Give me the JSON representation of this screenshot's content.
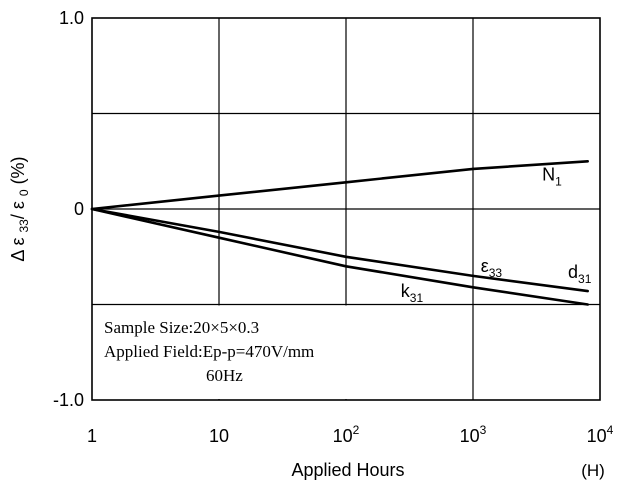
{
  "chart_data": {
    "type": "line",
    "x_scale": "log",
    "xlim": [
      1,
      10000
    ],
    "ylim": [
      -1.0,
      1.0
    ],
    "grid": true,
    "x_ticks": [
      {
        "value": 1,
        "base": "1",
        "exp": ""
      },
      {
        "value": 10,
        "base": "10",
        "exp": ""
      },
      {
        "value": 100,
        "base": "10",
        "exp": "2"
      },
      {
        "value": 1000,
        "base": "10",
        "exp": "3"
      },
      {
        "value": 10000,
        "base": "10",
        "exp": "4"
      }
    ],
    "y_ticks": [
      {
        "value": 1.0,
        "label": "1.0"
      },
      {
        "value": 0,
        "label": "0"
      },
      {
        "value": -1.0,
        "label": "-1.0"
      }
    ],
    "y_gridlines": [
      0.5,
      -0.5
    ],
    "xlabel": "Applied Hours",
    "xunit": "(H)",
    "ylabel": {
      "prefix": "Δ ε ",
      "sub1": "33",
      "mid": "/ ε ",
      "sub2": "0",
      "suffix": " (%)"
    },
    "series": [
      {
        "id": "n1",
        "x": [
          1,
          10,
          100,
          1000,
          8000
        ],
        "y": [
          0,
          0.07,
          0.14,
          0.21,
          0.25
        ]
      },
      {
        "id": "eps33",
        "x": [
          1,
          10,
          100,
          1000,
          8000
        ],
        "y": [
          0,
          -0.12,
          -0.25,
          -0.35,
          -0.43
        ]
      },
      {
        "id": "k31",
        "x": [
          1,
          10,
          100,
          1000,
          8000
        ],
        "y": [
          0,
          -0.15,
          -0.3,
          -0.41,
          -0.5
        ]
      }
    ],
    "labels": [
      {
        "id": "n1-label",
        "base": "N",
        "sub": "1",
        "at": [
          3500,
          0.15
        ]
      },
      {
        "id": "eps33-label",
        "base": "ε",
        "sub": "33",
        "at": [
          1150,
          -0.33
        ]
      },
      {
        "id": "d31-label",
        "base": "d",
        "sub": "31",
        "at": [
          5600,
          -0.36
        ]
      },
      {
        "id": "k31-label",
        "base": "k",
        "sub": "31",
        "at": [
          270,
          -0.46
        ]
      }
    ],
    "annotation": [
      "Sample Size:20×5×0.3",
      "Applied Field:Ep-p=470V/mm",
      "60Hz"
    ]
  }
}
